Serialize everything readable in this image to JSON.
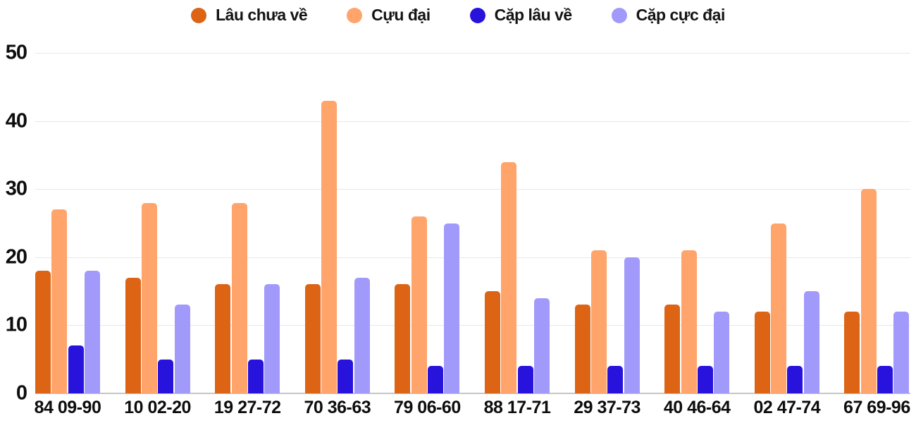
{
  "chart_data": {
    "type": "bar",
    "title": "",
    "categories": [
      "84 09-90",
      "10 02-20",
      "19 27-72",
      "70 36-63",
      "79 06-60",
      "88 17-71",
      "29 37-73",
      "40 46-64",
      "02 47-74",
      "67 69-96"
    ],
    "series": [
      {
        "name": "Lâu chưa về",
        "color": "#dc6414",
        "values": [
          18,
          17,
          16,
          16,
          16,
          15,
          13,
          13,
          12,
          12
        ]
      },
      {
        "name": "Cựu đại",
        "color": "#ffa46a",
        "values": [
          27,
          28,
          28,
          43,
          26,
          34,
          21,
          21,
          25,
          30
        ]
      },
      {
        "name": "Cặp lâu về",
        "color": "#2713dc",
        "values": [
          7,
          5,
          5,
          5,
          4,
          4,
          4,
          4,
          4,
          4
        ]
      },
      {
        "name": "Cặp cực đại",
        "color": "#a29afb",
        "values": [
          18,
          13,
          16,
          17,
          25,
          14,
          20,
          12,
          15,
          12
        ]
      }
    ],
    "yticks": [
      0,
      10,
      20,
      30,
      40,
      50
    ],
    "ylim": [
      0,
      50
    ],
    "grid": true,
    "legend_position": "top"
  },
  "colors": {
    "background": "#ffffff",
    "text": "#0d0d0d",
    "gridline": "#e8e8e8",
    "axis_line": "#c6c6c6"
  }
}
